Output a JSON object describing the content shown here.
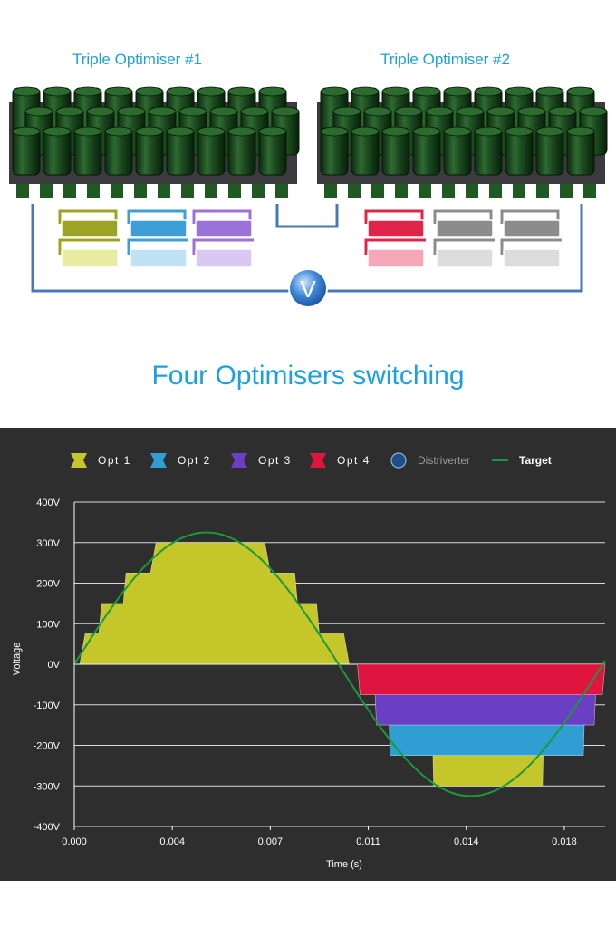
{
  "diagram": {
    "optimiser_1_label": "Triple Optimiser #1",
    "optimiser_2_label": "Triple Optimiser #2",
    "meter_symbol": "V"
  },
  "main_title": "Four Optimisers switching",
  "colors": {
    "opt1": "#c4c62a",
    "opt2": "#2f9fd3",
    "opt3": "#6a3fc4",
    "opt4": "#e0153f",
    "distriverter": "#1f4f86",
    "target": "#1a9a3a",
    "title_blue": "#1ea0df",
    "chart_bg": "#2e2e2e"
  },
  "chart_data": {
    "type": "area",
    "title": "",
    "xlabel": "Time (s)",
    "ylabel": "Voltage",
    "xlim": [
      0,
      0.0195
    ],
    "ylim": [
      -400,
      400
    ],
    "x_ticks": [
      "0.000",
      "0.004",
      "0.007",
      "0.011",
      "0.014",
      "0.018"
    ],
    "x_tick_values": [
      0,
      0.0036,
      0.0072,
      0.0108,
      0.0144,
      0.018
    ],
    "y_ticks": [
      "400V",
      "300V",
      "200V",
      "100V",
      "0V",
      "-100V",
      "-200V",
      "-300V",
      "-400V"
    ],
    "y_tick_values": [
      400,
      300,
      200,
      100,
      0,
      -100,
      -200,
      -300,
      -400
    ],
    "grid": true,
    "legend_position": "top",
    "legend": [
      {
        "label": "Opt 1",
        "marker": "square",
        "color": "#c4c62a"
      },
      {
        "label": "Opt 2",
        "marker": "square",
        "color": "#2f9fd3"
      },
      {
        "label": "Opt 3",
        "marker": "square",
        "color": "#6a3fc4"
      },
      {
        "label": "Opt 4",
        "marker": "square",
        "color": "#e0153f"
      },
      {
        "label": "Distriverter",
        "marker": "circle",
        "color": "#1f4f86"
      },
      {
        "label": "Target",
        "marker": "line",
        "color": "#1a9a3a"
      }
    ],
    "series": [
      {
        "name": "Opt 4",
        "color": "#e0153f",
        "sign": 1,
        "points": [
          [
            0,
            0
          ],
          [
            0.0024,
            0
          ],
          [
            0.0025,
            75
          ],
          [
            0.0036,
            75
          ],
          [
            0.0071,
            75
          ],
          [
            0.0072,
            0
          ],
          [
            0.0195,
            0
          ]
        ]
      },
      {
        "name": "Opt 3",
        "color": "#6a3fc4",
        "sign": 1,
        "points": [
          [
            0,
            0
          ],
          [
            0.0018,
            0
          ],
          [
            0.0019,
            75
          ],
          [
            0.0028,
            75
          ],
          [
            0.0029,
            150
          ],
          [
            0.0071,
            150
          ],
          [
            0.0072,
            75
          ],
          [
            0.0081,
            75
          ],
          [
            0.0082,
            0
          ],
          [
            0.0195,
            0
          ]
        ]
      },
      {
        "name": "Opt 2",
        "color": "#2f9fd3",
        "sign": 1,
        "points": [
          [
            0,
            0
          ],
          [
            0.0009,
            0
          ],
          [
            0.001,
            75
          ],
          [
            0.0018,
            75
          ],
          [
            0.0019,
            150
          ],
          [
            0.0028,
            150
          ],
          [
            0.0029,
            225
          ],
          [
            0.0071,
            225
          ],
          [
            0.0072,
            150
          ],
          [
            0.0081,
            150
          ],
          [
            0.0082,
            75
          ],
          [
            0.0089,
            75
          ],
          [
            0.009,
            0
          ],
          [
            0.0195,
            0
          ]
        ]
      },
      {
        "name": "Opt 1",
        "color": "#c4c62a",
        "sign": 1,
        "points": [
          [
            0,
            0
          ],
          [
            0.0002,
            0
          ],
          [
            0.0004,
            75
          ],
          [
            0.0009,
            75
          ],
          [
            0.001,
            150
          ],
          [
            0.0018,
            150
          ],
          [
            0.0019,
            225
          ],
          [
            0.0028,
            225
          ],
          [
            0.003,
            300
          ],
          [
            0.007,
            300
          ],
          [
            0.0072,
            225
          ],
          [
            0.0081,
            225
          ],
          [
            0.0082,
            150
          ],
          [
            0.0089,
            150
          ],
          [
            0.009,
            75
          ],
          [
            0.0099,
            75
          ],
          [
            0.0101,
            0
          ],
          [
            0.0195,
            0
          ]
        ]
      },
      {
        "name": "Opt 1",
        "color": "#c4c62a",
        "sign": -1,
        "points": [
          [
            0,
            0
          ],
          [
            0.0131,
            0
          ],
          [
            0.0132,
            -300
          ],
          [
            0.0172,
            -300
          ],
          [
            0.0173,
            0
          ],
          [
            0.0195,
            0
          ]
        ]
      },
      {
        "name": "Opt 2",
        "color": "#2f9fd3",
        "sign": -1,
        "points": [
          [
            0,
            0
          ],
          [
            0.0115,
            0
          ],
          [
            0.0116,
            -225
          ],
          [
            0.0187,
            -225
          ],
          [
            0.0188,
            0
          ],
          [
            0.0195,
            0
          ]
        ]
      },
      {
        "name": "Opt 3",
        "color": "#6a3fc4",
        "sign": -1,
        "points": [
          [
            0,
            0
          ],
          [
            0.011,
            0
          ],
          [
            0.0111,
            -150
          ],
          [
            0.0191,
            -150
          ],
          [
            0.0192,
            0
          ],
          [
            0.0195,
            0
          ]
        ]
      },
      {
        "name": "Opt 4",
        "color": "#e0153f",
        "sign": -1,
        "points": [
          [
            0,
            0
          ],
          [
            0.0104,
            0
          ],
          [
            0.0105,
            -75
          ],
          [
            0.0194,
            -75
          ],
          [
            0.0195,
            0
          ]
        ]
      }
    ],
    "target": {
      "name": "Target",
      "amplitude": 325,
      "frequency_hz": 51.5,
      "color": "#1a9a3a"
    }
  }
}
